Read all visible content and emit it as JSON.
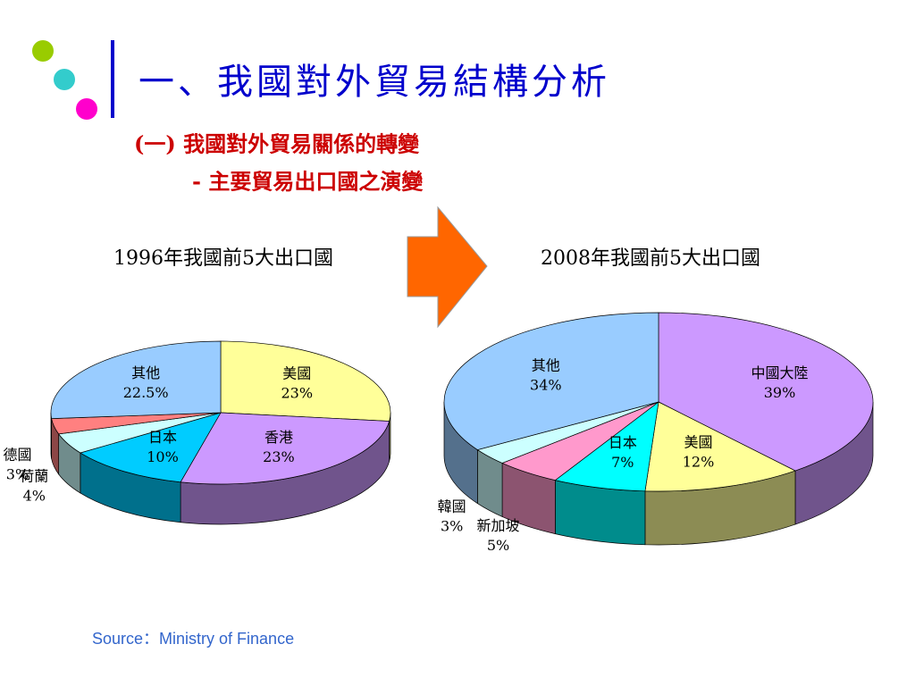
{
  "slide": {
    "title": "一、我國對外貿易結構分析",
    "subtitle": [
      "(一) 我國對外貿易關係的轉變",
      "- 主要貿易出口國之演變"
    ],
    "source": "Source：Ministry of Finance"
  },
  "chart_data": [
    {
      "type": "pie",
      "title": "1996年我國前5大出口國",
      "categories": [
        "美國",
        "香港",
        "日本",
        "荷蘭",
        "德國",
        "其他"
      ],
      "values": [
        23,
        23,
        10,
        4,
        3,
        22.5
      ],
      "value_labels": [
        "23%",
        "23%",
        "10%",
        "4%",
        "3%",
        "22.5%"
      ],
      "colors": [
        "#FFFF99",
        "#CC99FF",
        "#00CCFF",
        "#CCFFFF",
        "#FF8080",
        "#99CCFF"
      ]
    },
    {
      "type": "pie",
      "title": "2008年我國前5大出口國",
      "categories": [
        "中國大陸",
        "美國",
        "日本",
        "新加坡",
        "韓國",
        "其他"
      ],
      "values": [
        39,
        12,
        7,
        5,
        3,
        34
      ],
      "value_labels": [
        "39%",
        "12%",
        "7%",
        "5%",
        "3%",
        "34%"
      ],
      "colors": [
        "#CC99FF",
        "#FFFF99",
        "#00FFFF",
        "#FF99CC",
        "#CCFFFF",
        "#99CCFF"
      ]
    }
  ]
}
